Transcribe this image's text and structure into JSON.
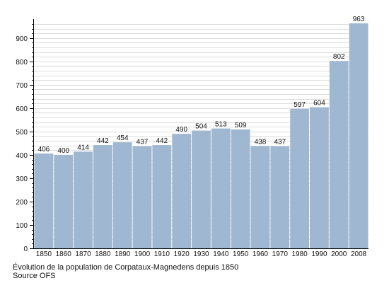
{
  "chart_data": {
    "type": "bar",
    "categories": [
      "1850",
      "1860",
      "1870",
      "1880",
      "1890",
      "1900",
      "1910",
      "1920",
      "1930",
      "1940",
      "1950",
      "1960",
      "1970",
      "1980",
      "1990",
      "2000",
      "2008"
    ],
    "values": [
      406,
      400,
      414,
      442,
      454,
      437,
      442,
      490,
      504,
      513,
      509,
      438,
      437,
      597,
      604,
      802,
      963
    ],
    "data_labels": [
      "406",
      "400",
      "414",
      "442",
      "454",
      "437",
      "442",
      "490",
      "504",
      "513",
      "509",
      "438",
      "437",
      "597",
      "604",
      "802",
      "963"
    ],
    "yticks": [
      0,
      100,
      200,
      300,
      400,
      500,
      600,
      700,
      800,
      900
    ],
    "ytick_labels": [
      "0",
      "100",
      "200",
      "300",
      "400",
      "500",
      "600",
      "700",
      "800",
      "900"
    ],
    "ylim": [
      0,
      963
    ],
    "grid": true,
    "minor_grid_step": 20,
    "bar_color": "#a0b7d2",
    "grid_color": "#bbbbbb"
  },
  "caption": {
    "line1": "Évolution de la population de Corpataux-Magnedens depuis 1850",
    "line2": "Source OFS"
  }
}
